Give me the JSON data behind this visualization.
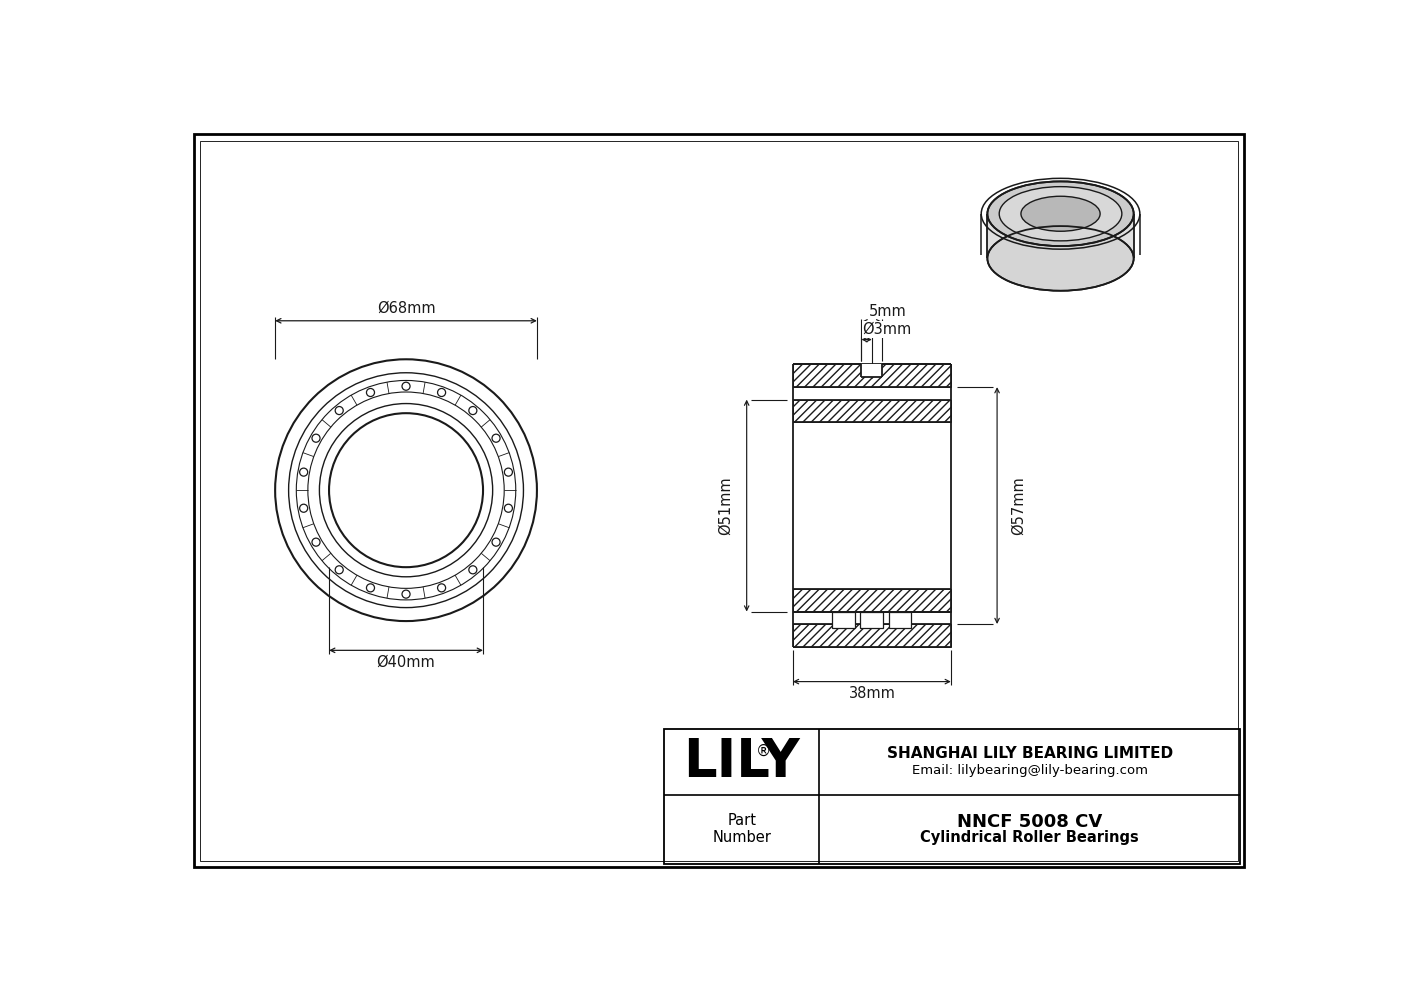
{
  "drawing_bg": "#ffffff",
  "line_color": "#1a1a1a",
  "title": "NNCF 5008 CV",
  "subtitle": "Cylindrical Roller Bearings",
  "company": "SHANGHAI LILY BEARING LIMITED",
  "email": "Email: lilybearing@lily-bearing.com",
  "part_label": "Part\nNumber",
  "logo_reg": "®",
  "dim_od": "Ø68mm",
  "dim_id": "Ø40mm",
  "dim_width": "38mm",
  "dim_inner_od": "Ø51mm",
  "dim_outer_od": "Ø57mm",
  "dim_groove_w": "5mm",
  "dim_groove_d": "Ø3mm",
  "border_color": "#000000",
  "n_rollers": 18
}
